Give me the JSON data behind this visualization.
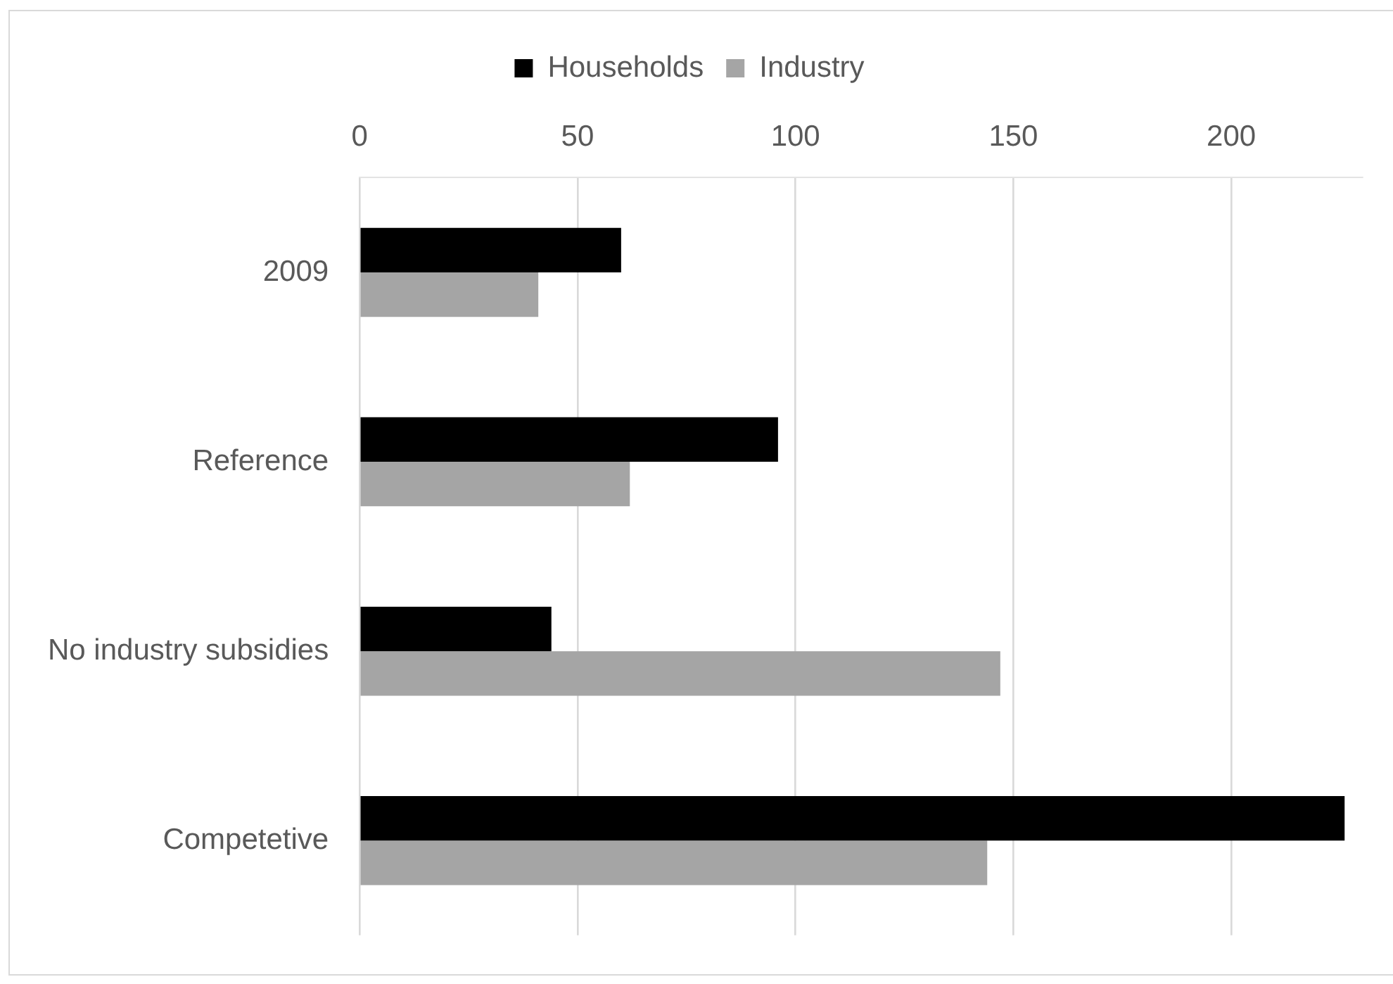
{
  "chart_data": {
    "type": "bar",
    "orientation": "horizontal",
    "categories": [
      "2009",
      "Reference",
      "No industry subsidies",
      "Competetive"
    ],
    "series": [
      {
        "name": "Households",
        "color": "#000000",
        "values": [
          60,
          96,
          44,
          226
        ]
      },
      {
        "name": "Industry",
        "color": "#a5a5a5",
        "values": [
          41,
          62,
          147,
          144
        ]
      }
    ],
    "xlim": [
      0,
      230
    ],
    "xticks": [
      0,
      50,
      100,
      150,
      200
    ],
    "grid": "x",
    "legend": "top"
  }
}
